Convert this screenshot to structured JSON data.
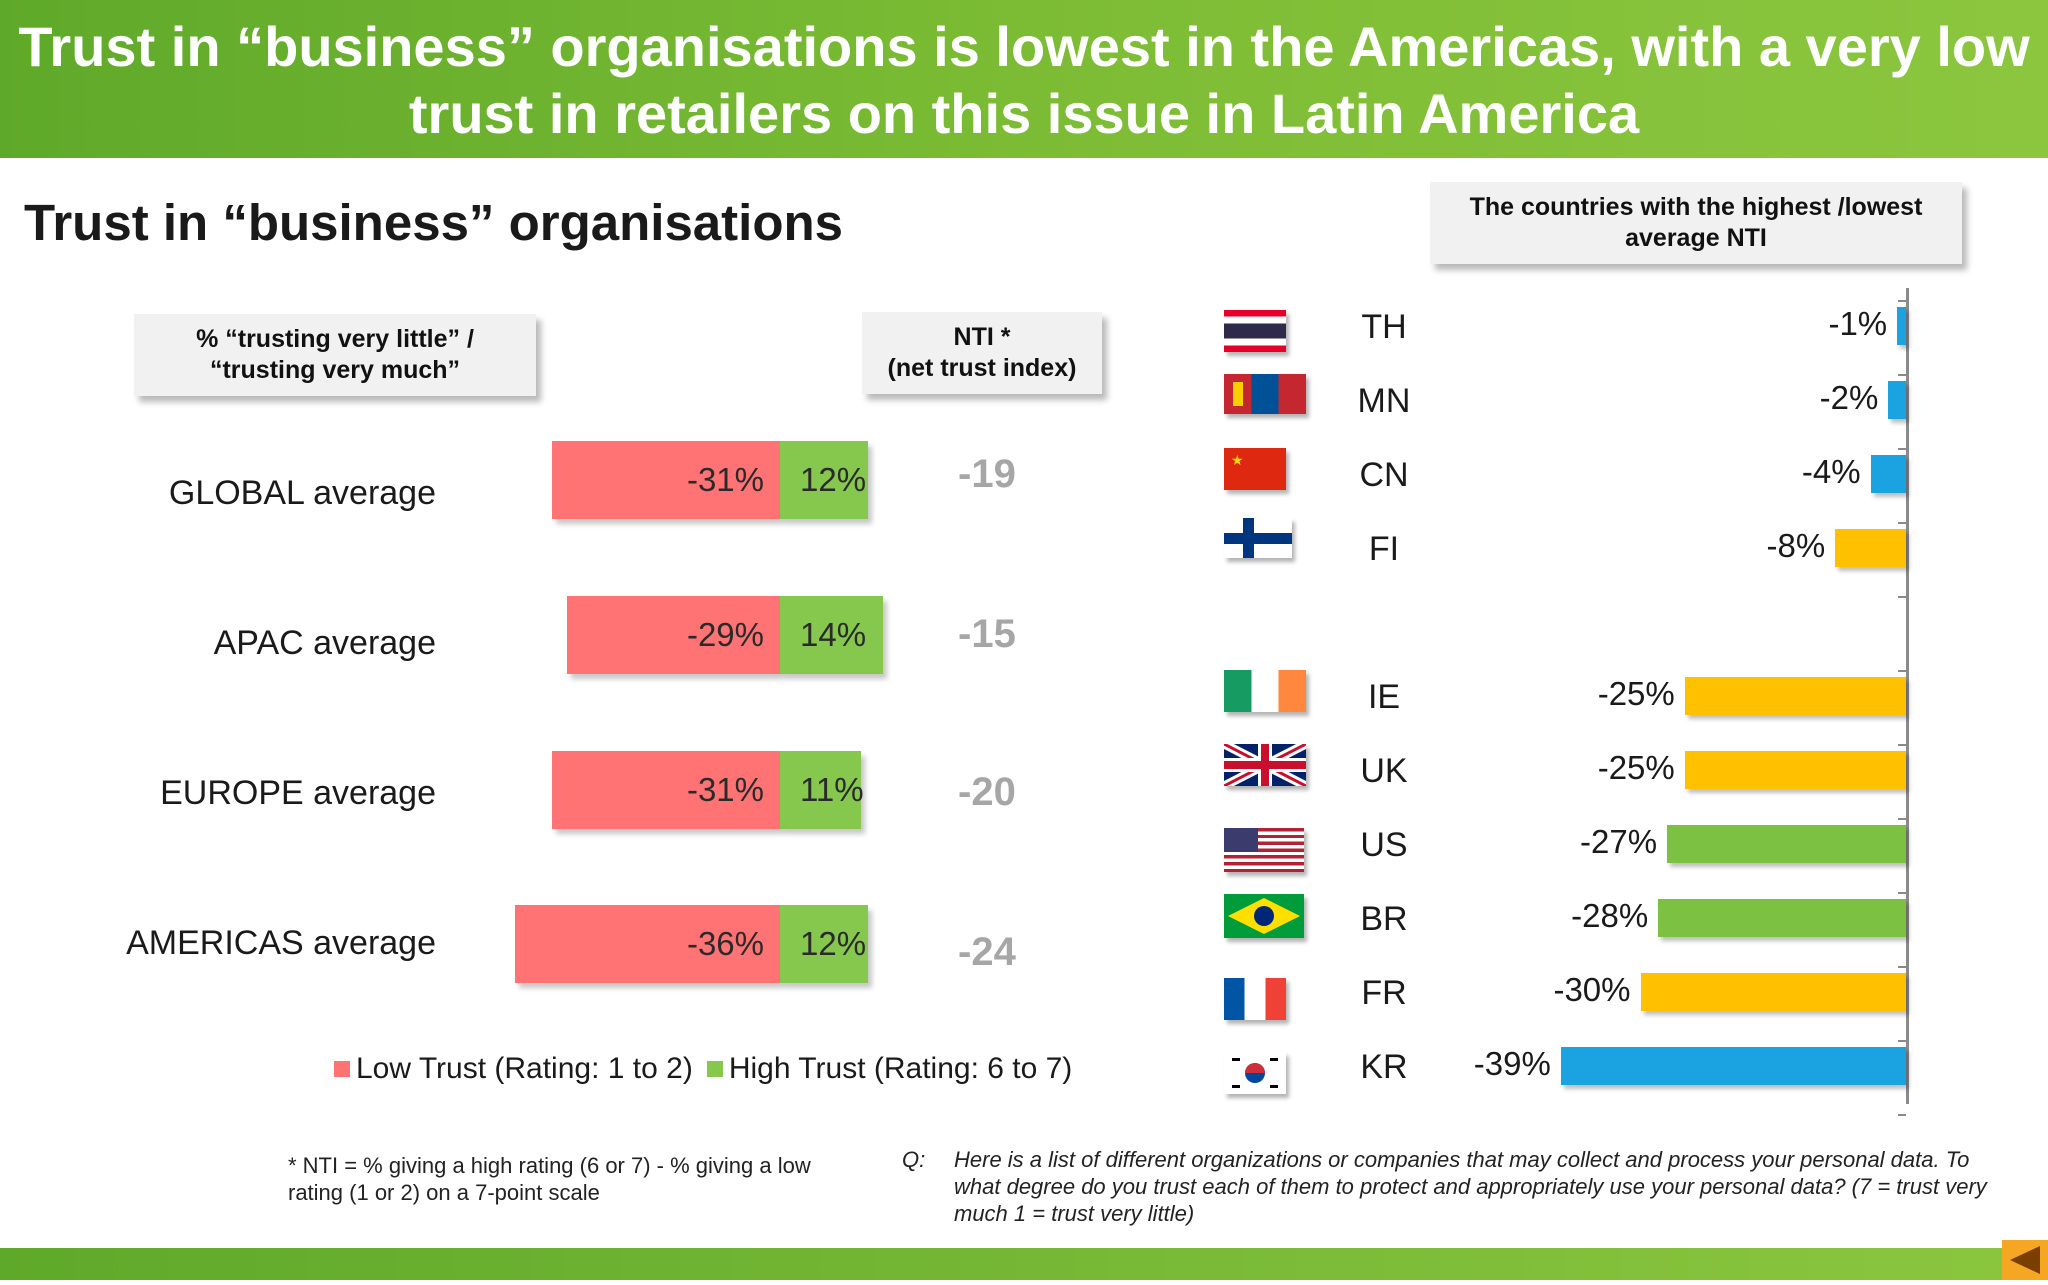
{
  "header": {
    "title_line1": "Trust in “business” organisations is lowest in the Americas, with a very low",
    "title_line2": "trust in retailers on this issue in Latin America"
  },
  "subtitle": "Trust in “business” organisations",
  "left_box": {
    "line1": "% “trusting very  little” /",
    "line2": "“trusting very much”"
  },
  "nti_box": {
    "line1": "NTI *",
    "line2": "(net trust index)"
  },
  "right_box": {
    "line1": "The countries with the highest /lowest",
    "line2": "average NTI"
  },
  "colors": {
    "low": "#ff7374",
    "high": "#86c84e",
    "blue": "#1aa3e0",
    "yellow": "#ffc000",
    "green": "#7dc142",
    "header": "#7cbc34"
  },
  "chart_data": [
    {
      "type": "bar",
      "orientation": "horizontal-diverging",
      "categories": [
        "GLOBAL average",
        "APAC average",
        "EUROPE average",
        "AMERICAS average"
      ],
      "series": [
        {
          "name": "Low Trust (Rating: 1 to 2)",
          "values": [
            -31,
            -29,
            -31,
            -36
          ],
          "labels": [
            "-31%",
            "-29%",
            "-31%",
            "-36%"
          ]
        },
        {
          "name": "High Trust (Rating: 6 to 7)",
          "values": [
            12,
            14,
            11,
            12
          ],
          "labels": [
            "12%",
            "14%",
            "11%",
            "12%"
          ]
        }
      ],
      "nti": [
        "-19",
        "-15",
        "-20",
        "-24"
      ],
      "legend": "bottom"
    },
    {
      "type": "bar",
      "orientation": "horizontal",
      "categories": [
        "TH",
        "MN",
        "CN",
        "FI",
        "IE",
        "UK",
        "US",
        "BR",
        "FR",
        "KR"
      ],
      "values": [
        -1,
        -2,
        -4,
        -8,
        -25,
        -25,
        -27,
        -28,
        -30,
        -39
      ],
      "labels": [
        "-1%",
        "-2%",
        "-4%",
        "-8%",
        "-25%",
        "-25%",
        "-27%",
        "-28%",
        "-30%",
        "-39%"
      ],
      "colors": [
        "blue",
        "blue",
        "blue",
        "yellow",
        "yellow",
        "yellow",
        "green",
        "green",
        "yellow",
        "blue"
      ]
    }
  ],
  "footnote": "* NTI = % giving a high rating (6 or 7) - % giving a low rating (1 or 2) on a 7-point scale",
  "question_label": "Q:",
  "question": "Here is a list of different organizations or companies that may collect and process your personal data.  To what degree do you trust each of them to protect and appropriately use your personal data? (7 = trust very much 1 = trust very little)"
}
